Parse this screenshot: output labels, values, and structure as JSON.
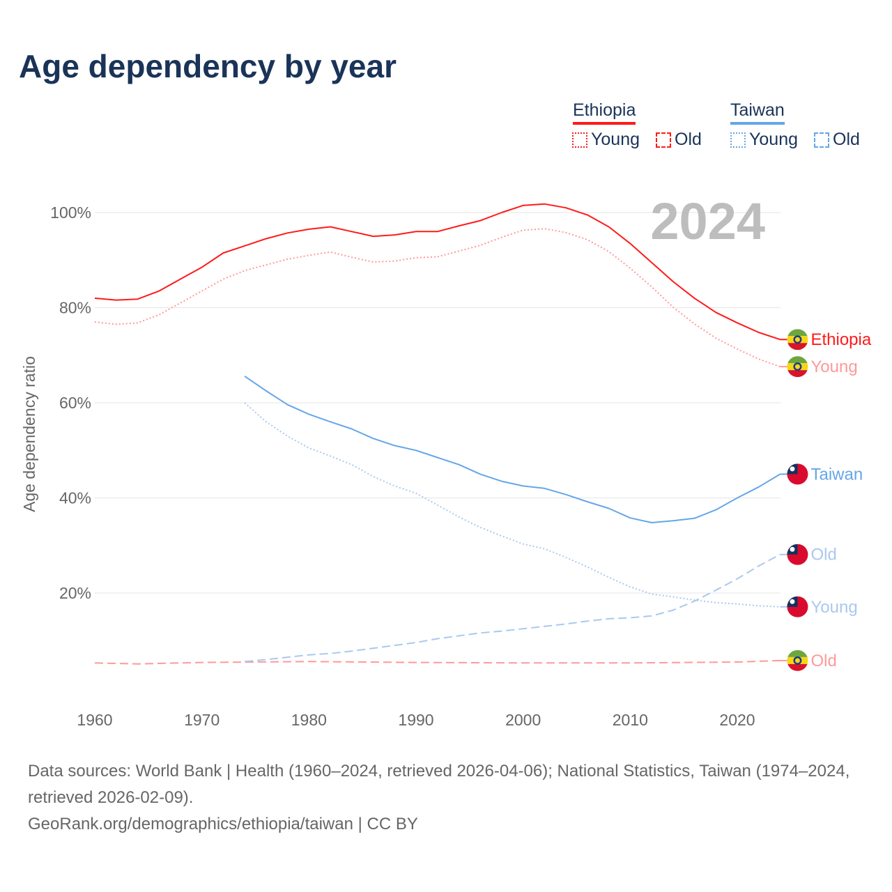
{
  "title": "Age dependency by year",
  "legend": {
    "groups": [
      {
        "country": "Ethiopia",
        "color": "#ff1a1a",
        "items": [
          {
            "label": "Young",
            "style": "dotted"
          },
          {
            "label": "Old",
            "style": "dashed"
          }
        ]
      },
      {
        "country": "Taiwan",
        "color": "#65a6e8",
        "items": [
          {
            "label": "Young",
            "style": "dotted"
          },
          {
            "label": "Old",
            "style": "dashed"
          }
        ]
      }
    ]
  },
  "footer": {
    "sources": "Data sources: World Bank | Health (1960–2024, retrieved 2026-04-06); National Statistics, Taiwan (1974–2024, retrieved 2026-02-09).",
    "credit": "GeoRank.org/demographics/ethiopia/taiwan | CC BY"
  },
  "chart_data": {
    "type": "line",
    "title": "Age dependency by year",
    "year_label": "2024",
    "xlabel": "",
    "ylabel": "Age dependency ratio",
    "xlim": [
      1960,
      2024
    ],
    "ylim": [
      0,
      105
    ],
    "x_ticks": [
      "1960",
      "1970",
      "1980",
      "1990",
      "2000",
      "2010",
      "2020"
    ],
    "y_ticks": [
      "20%",
      "40%",
      "60%",
      "80%",
      "100%"
    ],
    "grid": true,
    "legend_position": "top-right",
    "series": [
      {
        "name": "Ethiopia",
        "label": "Ethiopia",
        "color": "#ff1a1a",
        "style": "solid",
        "flag": "ethiopia",
        "x": [
          1960,
          1962,
          1964,
          1966,
          1968,
          1970,
          1972,
          1974,
          1976,
          1978,
          1980,
          1982,
          1984,
          1986,
          1988,
          1990,
          1992,
          1994,
          1996,
          1998,
          2000,
          2002,
          2004,
          2006,
          2008,
          2010,
          2012,
          2014,
          2016,
          2018,
          2020,
          2022,
          2024
        ],
        "y": [
          82,
          81.6,
          81.8,
          83.5,
          86,
          88.5,
          91.5,
          93,
          94.5,
          95.7,
          96.5,
          97,
          96,
          95,
          95.3,
          96,
          96,
          97.2,
          98.3,
          100,
          101.5,
          101.8,
          101,
          99.5,
          97,
          93.5,
          89.5,
          85.5,
          82,
          79,
          76.8,
          74.8,
          73.3
        ]
      },
      {
        "name": "Ethiopia Young",
        "label": "Young",
        "color": "#ff9999",
        "style": "dotted",
        "flag": "ethiopia",
        "x": [
          1960,
          1962,
          1964,
          1966,
          1968,
          1970,
          1972,
          1974,
          1976,
          1978,
          1980,
          1982,
          1984,
          1986,
          1988,
          1990,
          1992,
          1994,
          1996,
          1998,
          2000,
          2002,
          2004,
          2006,
          2008,
          2010,
          2012,
          2014,
          2016,
          2018,
          2020,
          2022,
          2024
        ],
        "y": [
          77,
          76.5,
          76.8,
          78.5,
          81,
          83.5,
          86,
          87.8,
          89,
          90.2,
          91,
          91.7,
          90.6,
          89.6,
          89.8,
          90.5,
          90.7,
          91.9,
          93.1,
          94.8,
          96.3,
          96.6,
          95.8,
          94.3,
          91.8,
          88.3,
          84.4,
          80.1,
          76.6,
          73.6,
          71.3,
          69.2,
          67.6
        ]
      },
      {
        "name": "Ethiopia Old",
        "label": "Old",
        "color": "#ff9999",
        "style": "dashed",
        "flag": "ethiopia",
        "x": [
          1960,
          1964,
          1970,
          1980,
          1990,
          2000,
          2010,
          2020,
          2024
        ],
        "y": [
          5.3,
          5.1,
          5.4,
          5.6,
          5.4,
          5.3,
          5.3,
          5.5,
          5.8
        ]
      },
      {
        "name": "Taiwan",
        "label": "Taiwan",
        "color": "#65a6e8",
        "style": "solid",
        "flag": "taiwan",
        "x": [
          1974,
          1976,
          1978,
          1980,
          1982,
          1984,
          1986,
          1988,
          1990,
          1992,
          1994,
          1996,
          1998,
          2000,
          2002,
          2004,
          2006,
          2008,
          2010,
          2012,
          2014,
          2016,
          2018,
          2020,
          2022,
          2024
        ],
        "y": [
          65.6,
          62.5,
          59.6,
          57.6,
          56,
          54.5,
          52.5,
          51,
          50,
          48.5,
          47,
          45,
          43.5,
          42.5,
          42,
          40.7,
          39.2,
          37.8,
          35.8,
          34.8,
          35.2,
          35.7,
          37.5,
          40,
          42.3,
          45
        ]
      },
      {
        "name": "Taiwan Young",
        "label": "Young",
        "color": "#a9c9ee",
        "style": "dotted",
        "flag": "taiwan",
        "x": [
          1974,
          1976,
          1978,
          1980,
          1982,
          1984,
          1986,
          1988,
          1990,
          1992,
          1994,
          1996,
          1998,
          2000,
          2002,
          2004,
          2006,
          2008,
          2010,
          2012,
          2014,
          2016,
          2018,
          2020,
          2022,
          2024
        ],
        "y": [
          60,
          56,
          53,
          50.5,
          48.8,
          47,
          44.5,
          42.5,
          41,
          38.5,
          36,
          33.8,
          32,
          30.3,
          29.3,
          27.5,
          25.5,
          23.3,
          21.3,
          19.8,
          19.2,
          18.5,
          18,
          17.7,
          17.3,
          17.1
        ]
      },
      {
        "name": "Taiwan Old",
        "label": "Old",
        "color": "#a9c9ee",
        "style": "dashed",
        "flag": "taiwan",
        "x": [
          1974,
          1976,
          1978,
          1980,
          1982,
          1984,
          1986,
          1988,
          1990,
          1992,
          1994,
          1996,
          1998,
          2000,
          2002,
          2004,
          2006,
          2008,
          2010,
          2012,
          2014,
          2016,
          2018,
          2020,
          2022,
          2024
        ],
        "y": [
          5.6,
          6,
          6.5,
          7,
          7.3,
          7.8,
          8.4,
          9,
          9.6,
          10.4,
          11,
          11.6,
          12,
          12.5,
          13,
          13.5,
          14.1,
          14.6,
          14.8,
          15.2,
          16.4,
          18.3,
          20.6,
          23,
          25.7,
          28.1
        ]
      }
    ]
  }
}
